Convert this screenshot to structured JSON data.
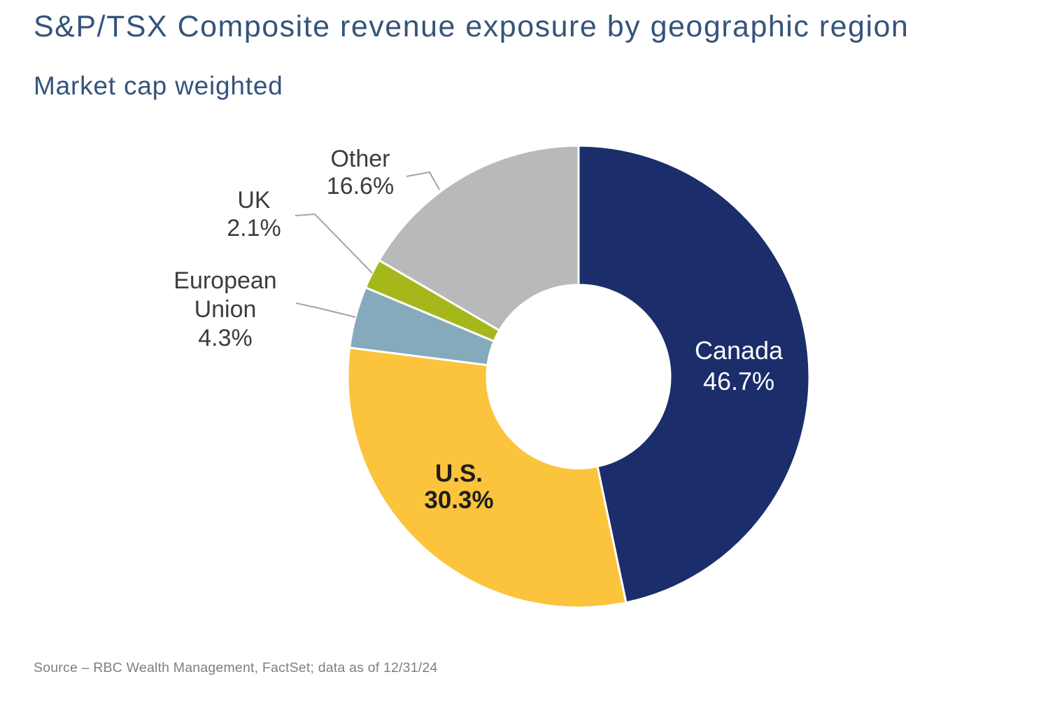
{
  "header": {
    "title": "S&P/TSX Composite revenue exposure by geographic region",
    "subtitle": "Market cap weighted"
  },
  "footer": {
    "source": "Source – RBC Wealth Management, FactSet; data as of 12/31/24"
  },
  "chart_data": {
    "type": "pie",
    "donut": true,
    "title": "S&P/TSX Composite revenue exposure by geographic region",
    "subtitle": "Market cap weighted",
    "unit": "%",
    "start_angle_deg": 0,
    "direction": "clockwise",
    "inner_radius_ratio": 0.4,
    "legend": "none",
    "separator_color": "#ffffff",
    "leader_line_color": "#a3a3a3",
    "series": [
      {
        "label": "Canada",
        "value": 46.7,
        "display": "46.7%",
        "color": "#1b2d6b",
        "label_placement": "inside"
      },
      {
        "label": "U.S.",
        "value": 30.3,
        "display": "30.3%",
        "color": "#fbc43c",
        "label_placement": "inside"
      },
      {
        "label": "European Union",
        "value": 4.3,
        "display": "4.3%",
        "color": "#85aabc",
        "label_placement": "callout"
      },
      {
        "label": "UK",
        "value": 2.1,
        "display": "2.1%",
        "color": "#a6b71c",
        "label_placement": "callout"
      },
      {
        "label": "Other",
        "value": 16.6,
        "display": "16.6%",
        "color": "#b8b9bb",
        "label_placement": "callout"
      }
    ]
  }
}
